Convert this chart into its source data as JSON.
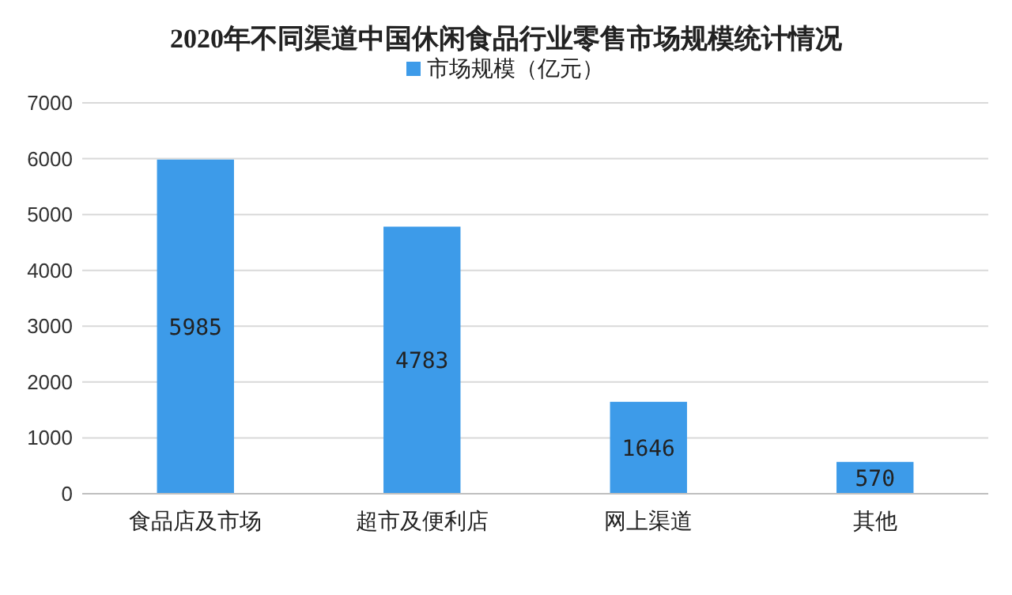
{
  "chart_data": {
    "type": "bar",
    "title": "2020年不同渠道中国休闲食品行业零售市场规模统计情况",
    "categories": [
      "食品店及市场",
      "超市及便利店",
      "网上渠道",
      "其他"
    ],
    "series": [
      {
        "name": "市场规模（亿元）",
        "color": "#3d9be9",
        "values": [
          5985,
          4783,
          1646,
          570
        ]
      }
    ],
    "ylim": [
      0,
      7000
    ],
    "yticks": [
      0,
      1000,
      2000,
      3000,
      4000,
      5000,
      6000,
      7000
    ],
    "grid": "y",
    "legend": "top",
    "data_labels": true
  }
}
